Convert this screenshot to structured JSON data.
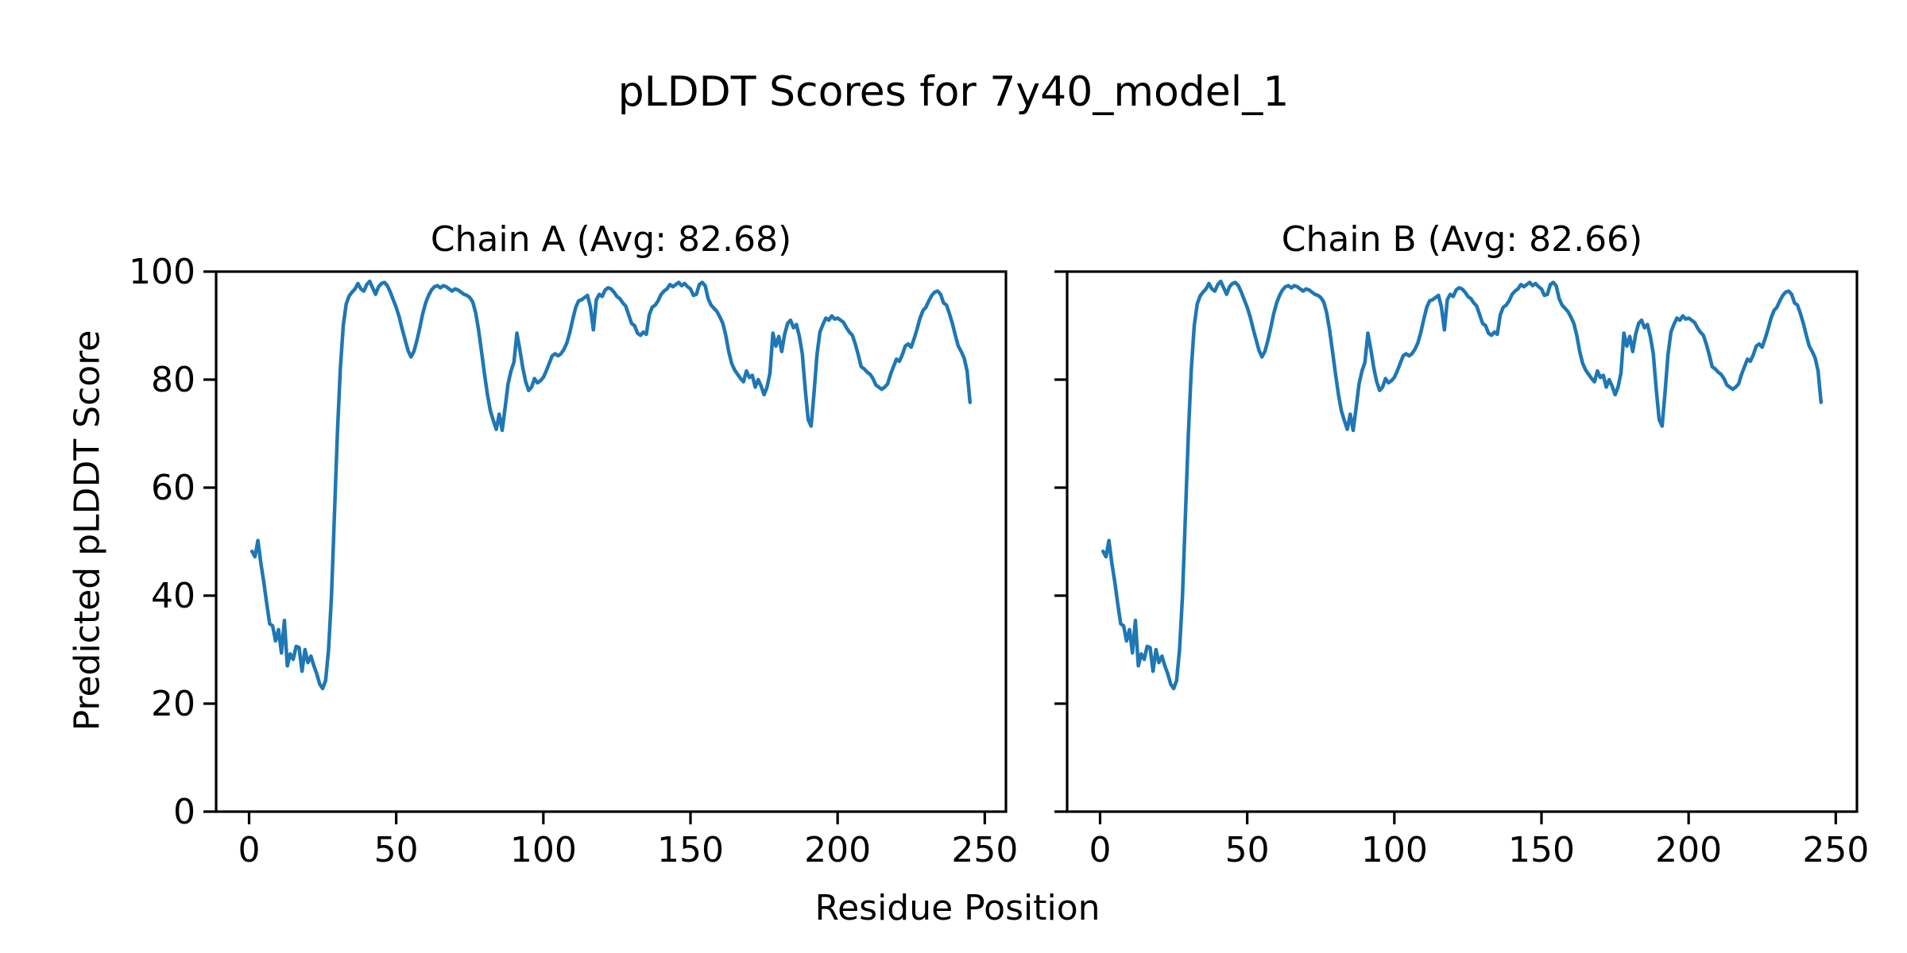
{
  "figure": {
    "suptitle": "pLDDT Scores for 7y40_model_1",
    "xlabel": "Residue Position",
    "ylabel": "Predicted pLDDT Score",
    "background_color": "#ffffff",
    "line_color": "#1f77b4",
    "axis_color": "#000000"
  },
  "chart_data": [
    {
      "type": "line",
      "title": "Chain A (Avg: 82.68)",
      "chain": "A",
      "average_plddt": 82.68,
      "xlabel": "Residue Position",
      "ylabel": "Predicted pLDDT Score",
      "xlim": [
        -11.2,
        257.2
      ],
      "ylim": [
        0,
        100
      ],
      "xticks": [
        0,
        50,
        100,
        150,
        200,
        250
      ],
      "yticks": [
        0,
        20,
        40,
        60,
        80,
        100
      ],
      "show_ytick_labels": true,
      "legend": "none",
      "grid": false,
      "x_start": 1,
      "values": [
        48.2,
        47.2,
        50.2,
        46.0,
        42.5,
        38.5,
        34.8,
        34.4,
        31.6,
        33.7,
        29.4,
        35.4,
        27.0,
        29.2,
        28.2,
        30.6,
        30.4,
        26.0,
        30.0,
        27.6,
        28.8,
        27.0,
        25.5,
        23.6,
        22.8,
        24.3,
        30.0,
        40.0,
        55.0,
        70.0,
        82.0,
        90.0,
        94.0,
        95.5,
        96.2,
        96.8,
        97.8,
        96.8,
        96.4,
        97.6,
        98.2,
        97.0,
        95.8,
        97.2,
        97.8,
        98.0,
        97.4,
        96.2,
        94.8,
        93.4,
        91.6,
        89.4,
        87.4,
        85.4,
        84.2,
        85.2,
        87.2,
        89.6,
        92.2,
        94.2,
        95.6,
        96.6,
        97.2,
        97.4,
        97.0,
        97.4,
        97.2,
        96.8,
        96.4,
        96.8,
        96.6,
        96.2,
        95.8,
        95.6,
        95.2,
        94.4,
        92.4,
        89.2,
        85.2,
        81.0,
        77.2,
        74.2,
        72.4,
        70.8,
        73.6,
        70.6,
        74.8,
        79.2,
        81.6,
        83.2,
        88.6,
        85.6,
        82.2,
        79.6,
        78.0,
        78.6,
        80.2,
        79.4,
        79.8,
        80.4,
        81.6,
        83.0,
        84.4,
        84.8,
        84.4,
        84.8,
        85.6,
        86.8,
        88.8,
        91.2,
        93.4,
        94.6,
        94.8,
        95.2,
        95.6,
        93.4,
        89.2,
        94.8,
        95.8,
        95.4,
        96.6,
        97.0,
        96.8,
        96.2,
        95.4,
        95.0,
        94.2,
        93.6,
        92.0,
        90.4,
        90.0,
        88.6,
        88.2,
        88.8,
        88.4,
        92.0,
        93.4,
        93.8,
        94.6,
        95.8,
        96.4,
        96.8,
        97.6,
        97.2,
        97.6,
        98.0,
        97.4,
        97.8,
        97.2,
        96.8,
        95.6,
        95.8,
        97.6,
        98.0,
        97.4,
        95.0,
        93.8,
        93.2,
        92.6,
        91.6,
        90.4,
        88.2,
        85.2,
        83.0,
        81.8,
        81.0,
        80.2,
        79.6,
        81.6,
        80.4,
        80.8,
        78.6,
        80.0,
        78.8,
        77.2,
        78.6,
        81.2,
        88.6,
        86.2,
        88.0,
        85.2,
        88.4,
        90.4,
        91.0,
        89.6,
        90.2,
        88.0,
        84.8,
        78.2,
        72.6,
        71.4,
        77.6,
        84.6,
        88.8,
        90.2,
        91.4,
        91.0,
        91.8,
        91.2,
        91.4,
        91.0,
        90.6,
        89.6,
        88.8,
        88.2,
        86.6,
        84.6,
        82.4,
        82.0,
        81.4,
        81.0,
        80.2,
        79.0,
        78.6,
        78.2,
        78.6,
        79.2,
        81.0,
        82.4,
        83.8,
        83.4,
        84.6,
        86.2,
        86.6,
        86.0,
        87.6,
        89.4,
        91.4,
        92.8,
        93.4,
        94.6,
        95.6,
        96.2,
        96.4,
        95.8,
        94.2,
        93.8,
        92.2,
        90.4,
        88.2,
        86.2,
        85.2,
        84.0,
        81.6,
        75.8
      ]
    },
    {
      "type": "line",
      "title": "Chain B (Avg: 82.66)",
      "chain": "B",
      "average_plddt": 82.66,
      "xlabel": "Residue Position",
      "ylabel": "Predicted pLDDT Score",
      "xlim": [
        -11.2,
        257.2
      ],
      "ylim": [
        0,
        100
      ],
      "xticks": [
        0,
        50,
        100,
        150,
        200,
        250
      ],
      "yticks": [
        0,
        20,
        40,
        60,
        80,
        100
      ],
      "show_ytick_labels": false,
      "legend": "none",
      "grid": false,
      "x_start": 1,
      "values": [
        48.2,
        47.2,
        50.2,
        46.0,
        42.5,
        38.5,
        34.8,
        34.4,
        31.6,
        33.7,
        29.4,
        35.4,
        27.0,
        29.2,
        28.2,
        30.6,
        30.4,
        26.0,
        30.0,
        27.6,
        28.8,
        27.0,
        25.5,
        23.6,
        22.8,
        24.3,
        30.0,
        40.0,
        55.0,
        70.0,
        82.0,
        90.0,
        94.0,
        95.5,
        96.2,
        96.8,
        97.8,
        96.8,
        96.4,
        97.6,
        98.2,
        97.0,
        95.8,
        97.2,
        97.8,
        98.0,
        97.4,
        96.2,
        94.8,
        93.4,
        91.6,
        89.4,
        87.4,
        85.4,
        84.2,
        85.2,
        87.2,
        89.6,
        92.2,
        94.2,
        95.6,
        96.6,
        97.2,
        97.4,
        97.0,
        97.4,
        97.2,
        96.8,
        96.4,
        96.8,
        96.6,
        96.2,
        95.8,
        95.6,
        95.2,
        94.4,
        92.4,
        89.2,
        85.2,
        81.0,
        77.2,
        74.2,
        72.4,
        70.8,
        73.6,
        70.6,
        74.8,
        79.2,
        81.6,
        83.2,
        88.6,
        85.6,
        82.2,
        79.6,
        78.0,
        78.6,
        80.2,
        79.4,
        79.8,
        80.4,
        81.6,
        83.0,
        84.4,
        84.8,
        84.4,
        84.8,
        85.6,
        86.8,
        88.8,
        91.2,
        93.4,
        94.6,
        94.8,
        95.2,
        95.6,
        93.4,
        89.2,
        94.8,
        95.8,
        95.4,
        96.6,
        97.0,
        96.8,
        96.2,
        95.4,
        95.0,
        94.2,
        93.6,
        92.0,
        90.4,
        90.0,
        88.6,
        88.2,
        88.8,
        88.4,
        92.0,
        93.4,
        93.8,
        94.6,
        95.8,
        96.4,
        96.8,
        97.6,
        97.2,
        97.6,
        98.0,
        97.4,
        97.8,
        97.2,
        96.8,
        95.6,
        95.8,
        97.6,
        98.0,
        97.4,
        95.0,
        93.8,
        93.2,
        92.6,
        91.6,
        90.4,
        88.2,
        85.2,
        83.0,
        81.8,
        81.0,
        80.2,
        79.6,
        81.6,
        80.4,
        80.8,
        78.6,
        80.0,
        78.8,
        77.2,
        78.6,
        81.2,
        88.6,
        86.2,
        88.0,
        85.2,
        88.4,
        90.4,
        91.0,
        89.6,
        90.2,
        88.0,
        84.8,
        78.2,
        72.6,
        71.4,
        77.6,
        84.6,
        88.8,
        90.2,
        91.4,
        91.0,
        91.8,
        91.2,
        91.4,
        91.0,
        90.6,
        89.6,
        88.8,
        88.2,
        86.6,
        84.6,
        82.4,
        82.0,
        81.4,
        81.0,
        80.2,
        79.0,
        78.6,
        78.2,
        78.6,
        79.2,
        81.0,
        82.4,
        83.8,
        83.4,
        84.6,
        86.2,
        86.6,
        86.0,
        87.6,
        89.4,
        91.4,
        92.8,
        93.4,
        94.6,
        95.6,
        96.2,
        96.4,
        95.8,
        94.2,
        93.8,
        92.2,
        90.4,
        88.2,
        86.2,
        85.2,
        84.0,
        81.6,
        75.8
      ]
    }
  ]
}
